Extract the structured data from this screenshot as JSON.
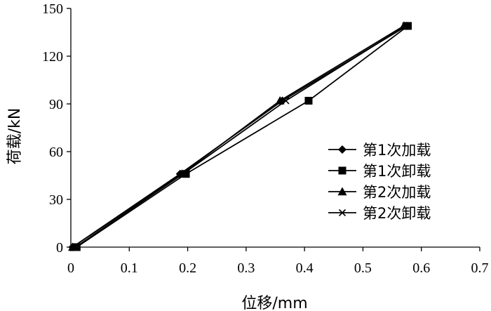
{
  "chart_data": {
    "type": "line",
    "title": "",
    "xlabel": "位移/mm",
    "ylabel": "荷载/kN",
    "xlim": [
      0,
      0.7
    ],
    "ylim": [
      0,
      150
    ],
    "xticks": [
      0,
      0.1,
      0.2,
      0.3,
      0.4,
      0.5,
      0.6,
      0.7
    ],
    "yticks": [
      0,
      30,
      60,
      90,
      120,
      150
    ],
    "xtick_labels": [
      "0",
      "0.1",
      "0.2",
      "0.3",
      "0.4",
      "0.5",
      "0.6",
      "0.7"
    ],
    "ytick_labels": [
      "0",
      "30",
      "60",
      "90",
      "120",
      "150"
    ],
    "grid": false,
    "legend_position": "bottom-right",
    "series": [
      {
        "name": "第1次加载",
        "marker": "diamond",
        "color": "#000000",
        "x": [
          0.003,
          0.187,
          0.362,
          0.575
        ],
        "y": [
          0,
          46,
          92,
          139
        ]
      },
      {
        "name": "第1次卸载",
        "marker": "square",
        "color": "#000000",
        "x": [
          0.01,
          0.197,
          0.407,
          0.577
        ],
        "y": [
          0,
          46,
          92,
          139
        ]
      },
      {
        "name": "第2次加载",
        "marker": "triangle",
        "color": "#000000",
        "x": [
          0.003,
          0.19,
          0.358,
          0.57
        ],
        "y": [
          0,
          46,
          92,
          139
        ]
      },
      {
        "name": "第2次卸载",
        "marker": "x",
        "color": "#000000",
        "x": [
          0.008,
          0.192,
          0.368,
          0.573
        ],
        "y": [
          0,
          46,
          92,
          139
        ]
      }
    ]
  }
}
